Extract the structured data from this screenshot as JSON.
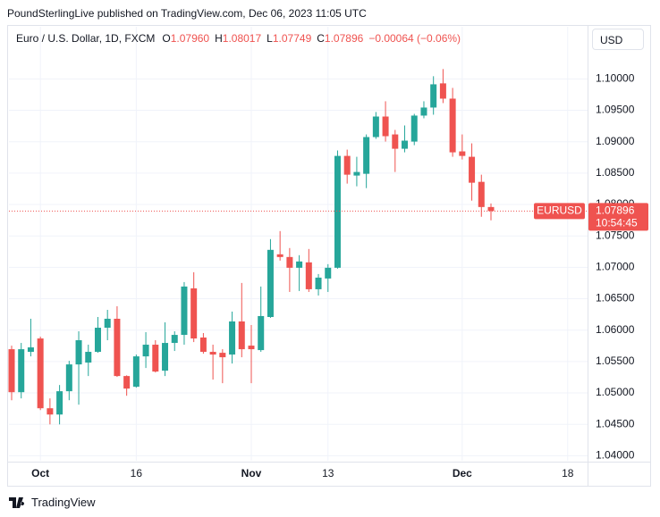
{
  "header": "PoundSterlingLive published on TradingView.com, Dec 06, 2023 11:05 UTC",
  "logo": "TradingView",
  "currency": "USD",
  "legend": {
    "symbol": "Euro / U.S. Dollar, 1D, FXCM",
    "fields": [
      {
        "key": "O",
        "text": "1.07960"
      },
      {
        "key": "H",
        "text": "1.08017"
      },
      {
        "key": "L",
        "text": "1.07749"
      },
      {
        "key": "C",
        "text": "1.07896"
      }
    ],
    "change": "−0.00064 (−0.06%)"
  },
  "chart_data": {
    "type": "candlestick",
    "up_color": "#26a69a",
    "down_color": "#ef5350",
    "grid": true,
    "categories": [
      null,
      null,
      null,
      "Oct",
      null,
      null,
      null,
      null,
      null,
      null,
      null,
      null,
      null,
      "16",
      null,
      null,
      null,
      null,
      null,
      null,
      null,
      null,
      null,
      null,
      null,
      "Nov",
      null,
      null,
      null,
      null,
      null,
      null,
      null,
      "13",
      null,
      null,
      null,
      null,
      null,
      null,
      null,
      null,
      null,
      null,
      null,
      null,
      null,
      "Dec",
      null,
      null,
      null,
      null,
      null,
      null,
      null,
      null,
      null,
      null,
      "18",
      null,
      null
    ],
    "open": [
      1.05696,
      1.05012,
      1.05654,
      1.05867,
      1.04756,
      1.04656,
      1.05027,
      1.05454,
      1.05483,
      1.05654,
      1.06038,
      1.06181,
      1.05269,
      1.05098,
      1.05582,
      1.05768,
      1.05354,
      1.05796,
      1.05924,
      1.06665,
      1.05882,
      1.05654,
      1.05639,
      1.05611,
      1.06138,
      1.05753,
      1.05682,
      1.06209,
      1.07207,
      1.07164,
      1.06993,
      1.07079,
      1.06651,
      1.06822,
      1.06993,
      1.08774,
      1.08461,
      1.08489,
      1.09074,
      1.09401,
      1.09116,
      1.08888,
      1.09002,
      1.09416,
      1.09544,
      1.09929,
      1.09686,
      1.08846,
      1.0876,
      1.08361,
      1.0796,
      null,
      null,
      null,
      null,
      null,
      null,
      null,
      null,
      null,
      null
    ],
    "high": [
      1.05753,
      1.05796,
      1.06181,
      1.05896,
      1.04913,
      1.05126,
      1.05511,
      1.05981,
      1.05768,
      1.06209,
      1.06323,
      1.0638,
      1.0528,
      1.05611,
      1.05967,
      1.05839,
      1.06124,
      1.05981,
      1.06765,
      1.06922,
      1.05953,
      1.05768,
      1.05696,
      1.06295,
      1.06751,
      1.06081,
      1.06694,
      1.07449,
      1.07577,
      1.07307,
      1.07193,
      1.07292,
      1.06893,
      1.0705,
      1.0886,
      1.08874,
      1.0876,
      1.09116,
      1.09473,
      1.09644,
      1.09188,
      1.09259,
      1.09444,
      1.09644,
      1.10043,
      1.10157,
      1.09857,
      1.09116,
      1.08974,
      1.08475,
      1.08017,
      null,
      null,
      null,
      null,
      null,
      null,
      null,
      null,
      null,
      null
    ],
    "low": [
      1.04884,
      1.04913,
      1.05582,
      1.04727,
      1.04499,
      1.04499,
      1.04884,
      1.04813,
      1.05269,
      1.05639,
      1.05839,
      1.05255,
      1.04955,
      1.05084,
      1.05397,
      1.05326,
      1.05269,
      1.05668,
      1.05768,
      1.0581,
      1.05625,
      1.05212,
      1.05155,
      1.05468,
      1.05568,
      1.05155,
      1.05654,
      1.06195,
      1.07107,
      1.06608,
      1.06623,
      1.06608,
      1.06551,
      1.06608,
      1.06979,
      1.08333,
      1.0829,
      1.08261,
      1.09045,
      1.09002,
      1.08518,
      1.08831,
      1.08945,
      1.09373,
      1.0943,
      1.09615,
      1.0876,
      1.08717,
      1.08062,
      1.07805,
      1.07749,
      null,
      null,
      null,
      null,
      null,
      null,
      null,
      null,
      null,
      null
    ],
    "close": [
      1.05012,
      1.05696,
      1.05725,
      1.04756,
      1.04656,
      1.05027,
      1.05454,
      1.05839,
      1.05654,
      1.06038,
      1.06181,
      1.05269,
      1.05069,
      1.05582,
      1.05768,
      1.0534,
      1.05796,
      1.05924,
      1.06694,
      1.05867,
      1.05654,
      1.05611,
      1.05568,
      1.06138,
      1.05696,
      1.05696,
      1.06224,
      1.07278,
      1.07164,
      1.06993,
      1.07093,
      1.06651,
      1.06836,
      1.06993,
      1.08774,
      1.08475,
      1.08518,
      1.09074,
      1.09401,
      1.09088,
      1.08888,
      1.09017,
      1.09416,
      1.09544,
      1.09914,
      1.09686,
      1.08831,
      1.08774,
      1.08347,
      1.0796,
      1.07896,
      null,
      null,
      null,
      null,
      null,
      null,
      null,
      null,
      null,
      null
    ],
    "ylim": [
      1.0392,
      1.1083
    ],
    "yticks": [
      {
        "value": 1.04,
        "label": "1.04000"
      },
      {
        "value": 1.045,
        "label": "1.04500"
      },
      {
        "value": 1.05,
        "label": "1.05000"
      },
      {
        "value": 1.055,
        "label": "1.05500"
      },
      {
        "value": 1.06,
        "label": "1.06000"
      },
      {
        "value": 1.065,
        "label": "1.06500"
      },
      {
        "value": 1.07,
        "label": "1.07000"
      },
      {
        "value": 1.075,
        "label": "1.07500"
      },
      {
        "value": 1.08,
        "label": "1.08000"
      },
      {
        "value": 1.085,
        "label": "1.08500"
      },
      {
        "value": 1.09,
        "label": "1.09000"
      },
      {
        "value": 1.095,
        "label": "1.09500"
      },
      {
        "value": 1.1,
        "label": "1.10000"
      }
    ],
    "last_price": {
      "value": 1.07896,
      "label": "1.07896"
    },
    "symbol_tag": "EURUSD",
    "countdown": "10:54:45"
  }
}
